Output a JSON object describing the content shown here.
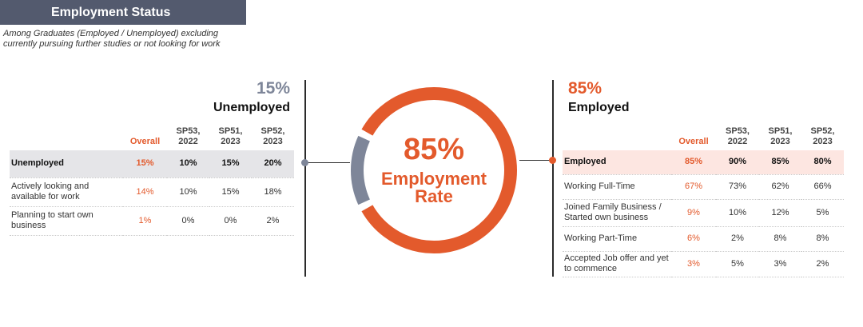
{
  "header": {
    "title": "Employment Status",
    "subtitle_lines": [
      "Among Graduates (Employed / Unemployed) excluding",
      "currently pursuing further studies or not looking for work"
    ]
  },
  "colors": {
    "employed": "#e35a2c",
    "unemployed": "#7e8699"
  },
  "chart_data": [
    {
      "type": "pie",
      "variant": "donut",
      "categories": [
        "Employed",
        "Unemployed"
      ],
      "values": [
        85,
        15
      ],
      "center_text": {
        "value": "85%",
        "line1": "Employment",
        "line2": "Rate"
      }
    },
    {
      "type": "table",
      "heading_pct": "15%",
      "heading_label": "Unemployed",
      "columns": [
        "Overall",
        "SP53, 2022",
        "SP51, 2023",
        "SP52, 2023"
      ],
      "rows": [
        {
          "label": "Unemployed",
          "values": [
            "15%",
            "10%",
            "15%",
            "20%"
          ]
        },
        {
          "label": "Actively looking and available for work",
          "values": [
            "14%",
            "10%",
            "15%",
            "18%"
          ]
        },
        {
          "label": "Planning to start own business",
          "values": [
            "1%",
            "0%",
            "0%",
            "2%"
          ]
        }
      ]
    },
    {
      "type": "table",
      "heading_pct": "85%",
      "heading_label": "Employed",
      "columns": [
        "Overall",
        "SP53, 2022",
        "SP51, 2023",
        "SP52, 2023"
      ],
      "rows": [
        {
          "label": "Employed",
          "values": [
            "85%",
            "90%",
            "85%",
            "80%"
          ]
        },
        {
          "label": "Working Full-Time",
          "values": [
            "67%",
            "73%",
            "62%",
            "66%"
          ]
        },
        {
          "label": "Joined Family Business / Started own business",
          "values": [
            "9%",
            "10%",
            "12%",
            "5%"
          ]
        },
        {
          "label": "Working Part-Time",
          "values": [
            "6%",
            "2%",
            "8%",
            "8%"
          ]
        },
        {
          "label": "Accepted Job offer and yet to commence",
          "values": [
            "3%",
            "5%",
            "3%",
            "2%"
          ]
        }
      ]
    }
  ]
}
